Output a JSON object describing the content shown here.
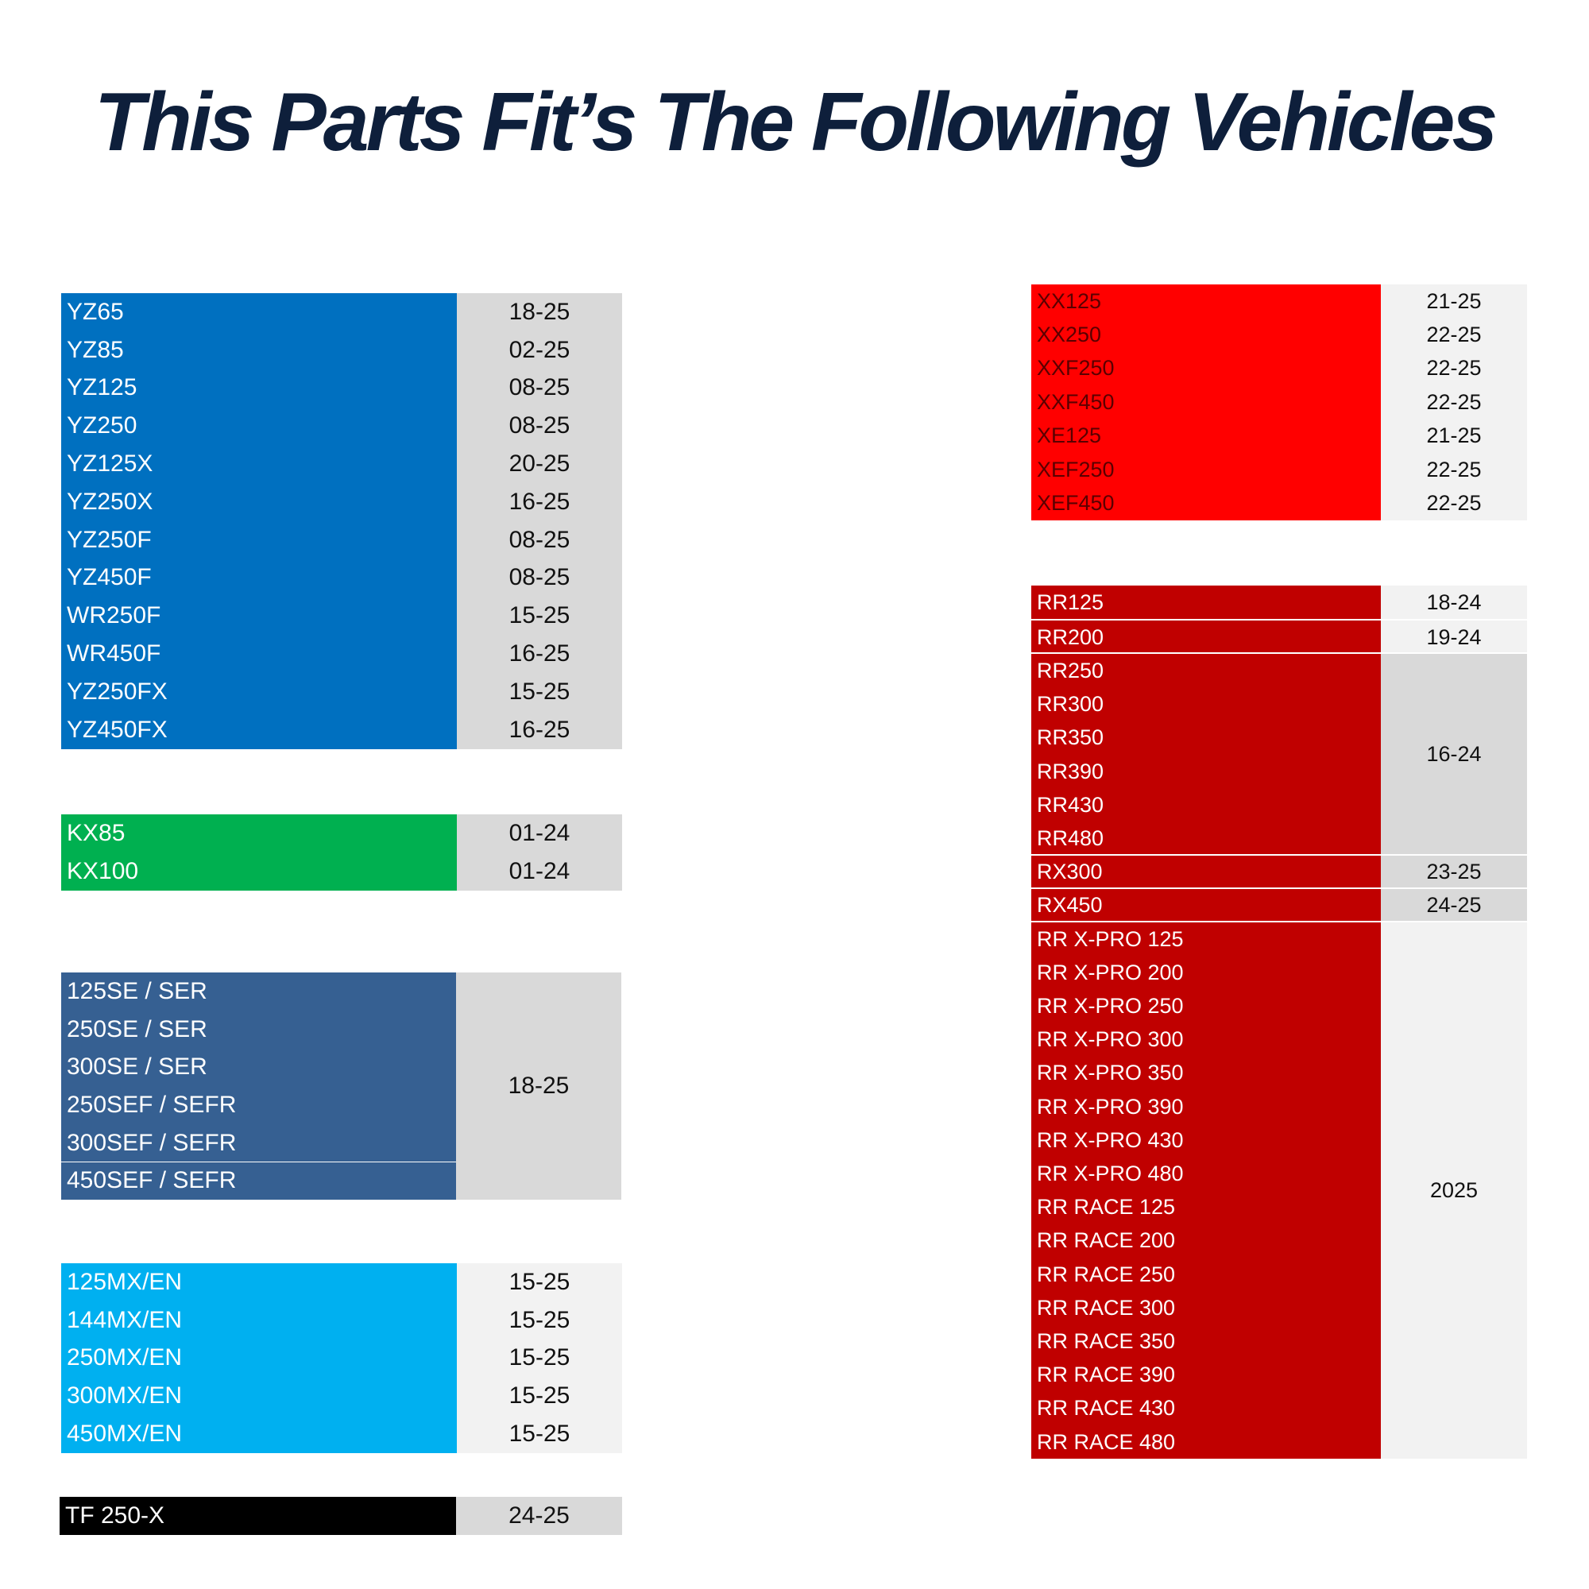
{
  "title": "This Parts Fit’s The Following Vehicles",
  "tables": [
    {
      "rows": [
        {
          "models": [
            "YZ65"
          ],
          "years": "18-25"
        },
        {
          "models": [
            "YZ85"
          ],
          "years": "02-25"
        },
        {
          "models": [
            "YZ125"
          ],
          "years": "08-25"
        },
        {
          "models": [
            "YZ250"
          ],
          "years": "08-25"
        },
        {
          "models": [
            "YZ125X"
          ],
          "years": "20-25"
        },
        {
          "models": [
            "YZ250X"
          ],
          "years": "16-25"
        },
        {
          "models": [
            "YZ250F"
          ],
          "years": "08-25"
        },
        {
          "models": [
            "YZ450F"
          ],
          "years": "08-25"
        },
        {
          "models": [
            "WR250F"
          ],
          "years": "15-25"
        },
        {
          "models": [
            "WR450F"
          ],
          "years": "16-25"
        },
        {
          "models": [
            "YZ250FX"
          ],
          "years": "15-25"
        },
        {
          "models": [
            "YZ450FX"
          ],
          "years": "16-25"
        }
      ]
    },
    {
      "rows": [
        {
          "models": [
            "KX85"
          ],
          "years": "01-24"
        },
        {
          "models": [
            "KX100"
          ],
          "years": "01-24"
        }
      ]
    },
    {
      "rows": [
        {
          "models": [
            "125SE / SER",
            "250SE / SER",
            "300SE / SER",
            "250SEF / SEFR",
            "300SEF / SEFR",
            "450SEF / SEFR"
          ],
          "years": "18-25"
        }
      ]
    },
    {
      "rows": [
        {
          "models": [
            "125MX/EN"
          ],
          "years": "15-25"
        },
        {
          "models": [
            "144MX/EN"
          ],
          "years": "15-25"
        },
        {
          "models": [
            "250MX/EN"
          ],
          "years": "15-25"
        },
        {
          "models": [
            "300MX/EN"
          ],
          "years": "15-25"
        },
        {
          "models": [
            "450MX/EN"
          ],
          "years": "15-25"
        }
      ]
    },
    {
      "rows": [
        {
          "models": [
            "TF 250-X"
          ],
          "years": "24-25"
        }
      ]
    },
    {
      "rows": [
        {
          "models": [
            "XX125"
          ],
          "years": "21-25"
        },
        {
          "models": [
            "XX250"
          ],
          "years": "22-25"
        },
        {
          "models": [
            "XXF250"
          ],
          "years": "22-25"
        },
        {
          "models": [
            "XXF450"
          ],
          "years": "22-25"
        },
        {
          "models": [
            "XE125"
          ],
          "years": "21-25"
        },
        {
          "models": [
            "XEF250"
          ],
          "years": "22-25"
        },
        {
          "models": [
            "XEF450"
          ],
          "years": "22-25"
        }
      ]
    },
    {
      "rows": [
        {
          "models": [
            "RR125"
          ],
          "years": "18-24"
        },
        {
          "models": [
            "RR200"
          ],
          "years": "19-24"
        },
        {
          "models": [
            "RR250",
            "RR300",
            "RR350",
            "RR390",
            "RR430",
            "RR480"
          ],
          "years": "16-24"
        },
        {
          "models": [
            "RX300"
          ],
          "years": "23-25"
        },
        {
          "models": [
            "RX450"
          ],
          "years": "24-25"
        },
        {
          "models": [
            "RR X-PRO 125",
            "RR X-PRO 200",
            "RR X-PRO 250",
            "RR X-PRO 300",
            "RR X-PRO 350",
            "RR X-PRO 390",
            "RR X-PRO 430",
            "RR X-PRO 480",
            "RR RACE 125",
            "RR RACE 200",
            "RR RACE 250",
            "RR RACE 300",
            "RR RACE 350",
            "RR RACE 390",
            "RR RACE 430",
            "RR RACE 480"
          ],
          "years": "2025"
        }
      ]
    }
  ]
}
